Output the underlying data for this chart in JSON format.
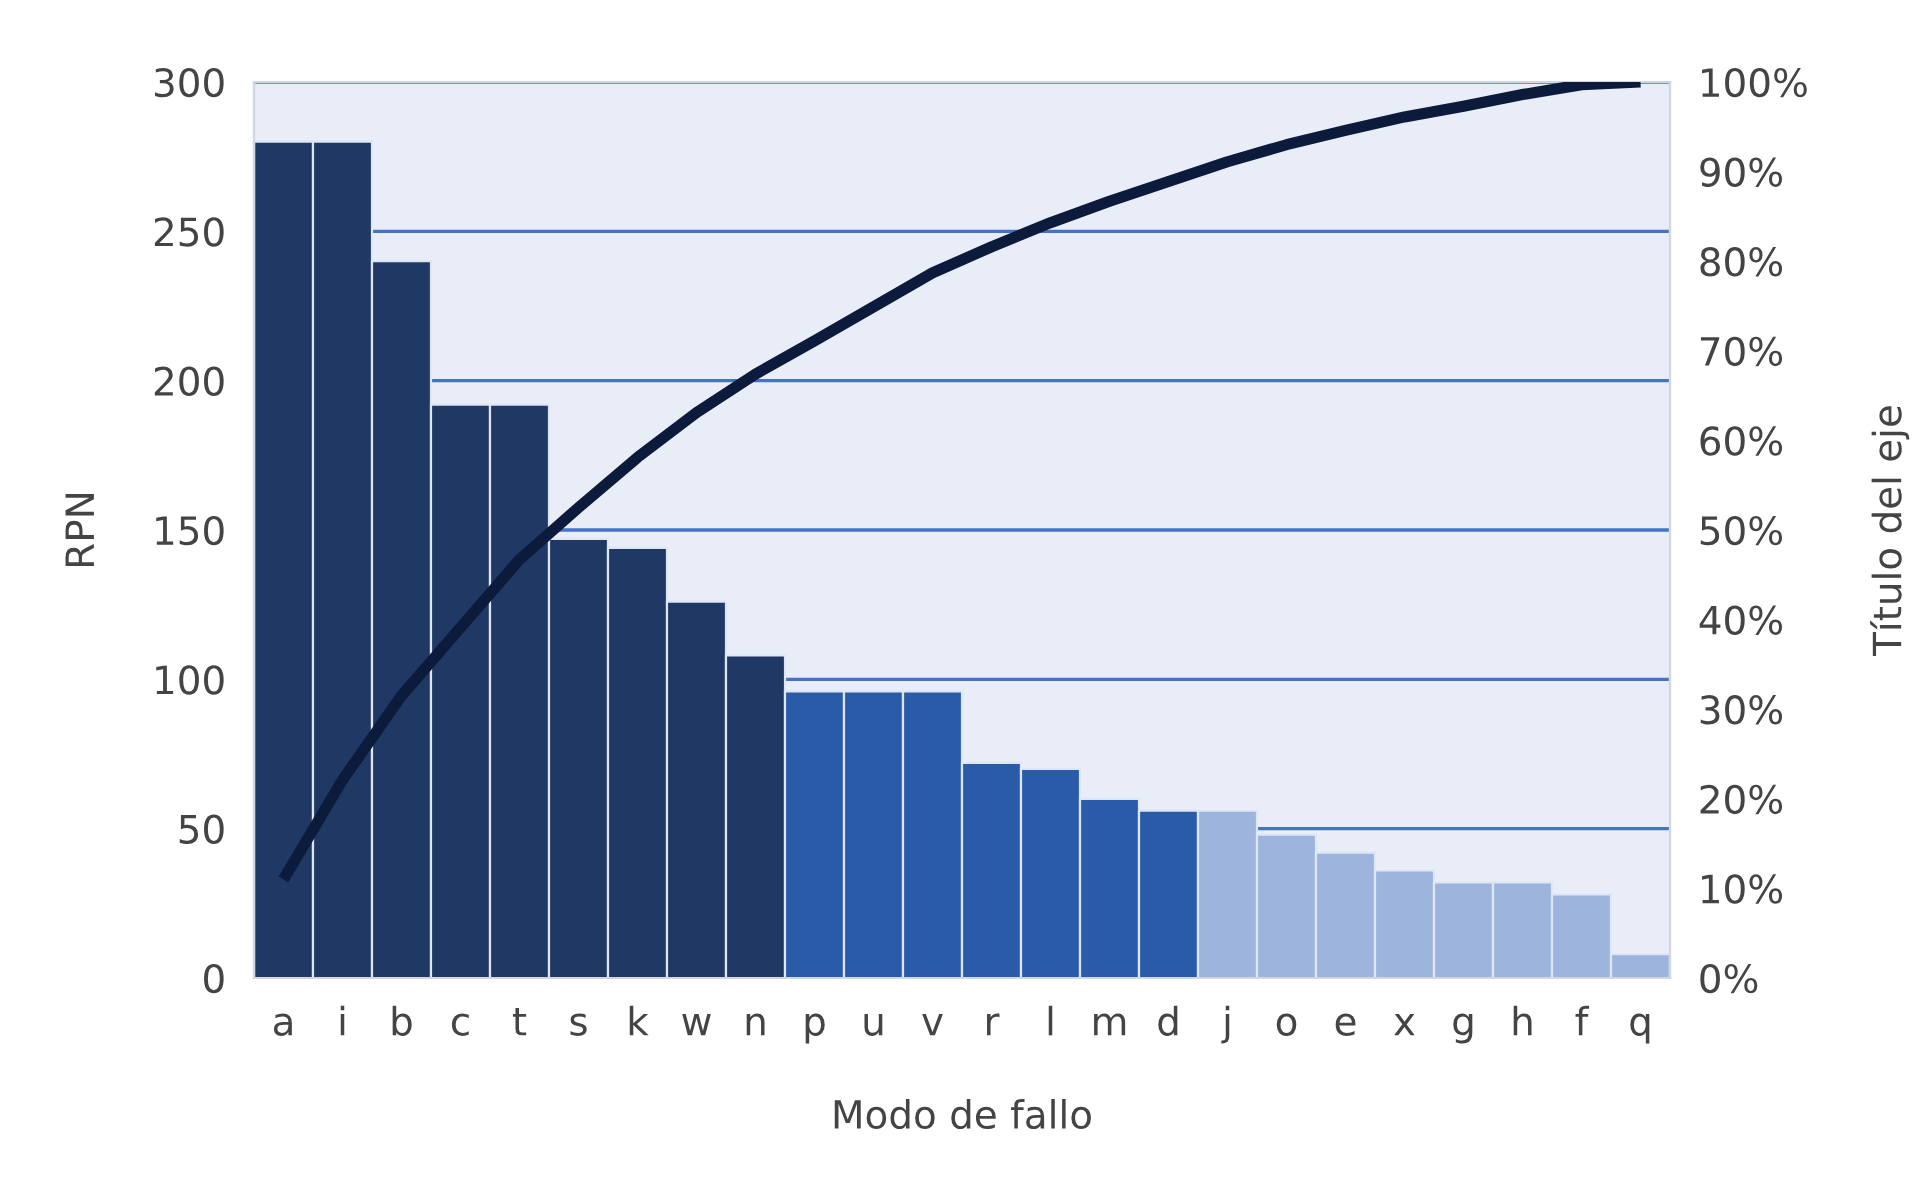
{
  "chart_data": {
    "type": "bar",
    "xlabel": "Modo de fallo",
    "ylabel": "RPN",
    "y2label": "Título del eje",
    "categories": [
      "a",
      "i",
      "b",
      "c",
      "t",
      "s",
      "k",
      "w",
      "n",
      "p",
      "u",
      "v",
      "r",
      "l",
      "m",
      "d",
      "j",
      "o",
      "e",
      "x",
      "g",
      "h",
      "f",
      "q"
    ],
    "series": [
      {
        "values": [
          280,
          280,
          240,
          192,
          192,
          147,
          144,
          126,
          108,
          96,
          96,
          96,
          72,
          70,
          60,
          56,
          56,
          48,
          42,
          36,
          32,
          32,
          28,
          8
        ],
        "colors": [
          "#1f3864",
          "#1f3864",
          "#1f3864",
          "#1f3864",
          "#1f3864",
          "#1f3864",
          "#1f3864",
          "#1f3864",
          "#1f3864",
          "#2a5ba8",
          "#2a5ba8",
          "#2a5ba8",
          "#2a5ba8",
          "#2a5ba8",
          "#2a5ba8",
          "#2a5ba8",
          "#9db5dc",
          "#9db5dc",
          "#9db5dc",
          "#9db5dc",
          "#9db5dc",
          "#9db5dc",
          "#9db5dc",
          "#9db5dc"
        ]
      },
      {
        "type": "line",
        "axis": "y2",
        "color": "#0c1a3c",
        "values": [
          0.11,
          0.221,
          0.315,
          0.391,
          0.467,
          0.525,
          0.581,
          0.631,
          0.674,
          0.711,
          0.749,
          0.787,
          0.816,
          0.843,
          0.867,
          0.889,
          0.911,
          0.93,
          0.946,
          0.961,
          0.973,
          0.986,
          0.997,
          1.0
        ]
      }
    ],
    "ylim": [
      0,
      300
    ],
    "yticks": [
      0,
      50,
      100,
      150,
      200,
      250,
      300
    ],
    "y2lim": [
      0,
      1
    ],
    "y2ticks": [
      {
        "value": 0,
        "label": "0%"
      },
      {
        "value": 0.1,
        "label": "10%"
      },
      {
        "value": 0.2,
        "label": "20%"
      },
      {
        "value": 0.3,
        "label": "30%"
      },
      {
        "value": 0.4,
        "label": "40%"
      },
      {
        "value": 0.5,
        "label": "50%"
      },
      {
        "value": 0.6,
        "label": "60%"
      },
      {
        "value": 0.7,
        "label": "70%"
      },
      {
        "value": 0.8,
        "label": "80%"
      },
      {
        "value": 0.9,
        "label": "90%"
      },
      {
        "value": 1.0,
        "label": "100%"
      }
    ],
    "grid": "y",
    "marker": "none",
    "line_style": "solid"
  }
}
